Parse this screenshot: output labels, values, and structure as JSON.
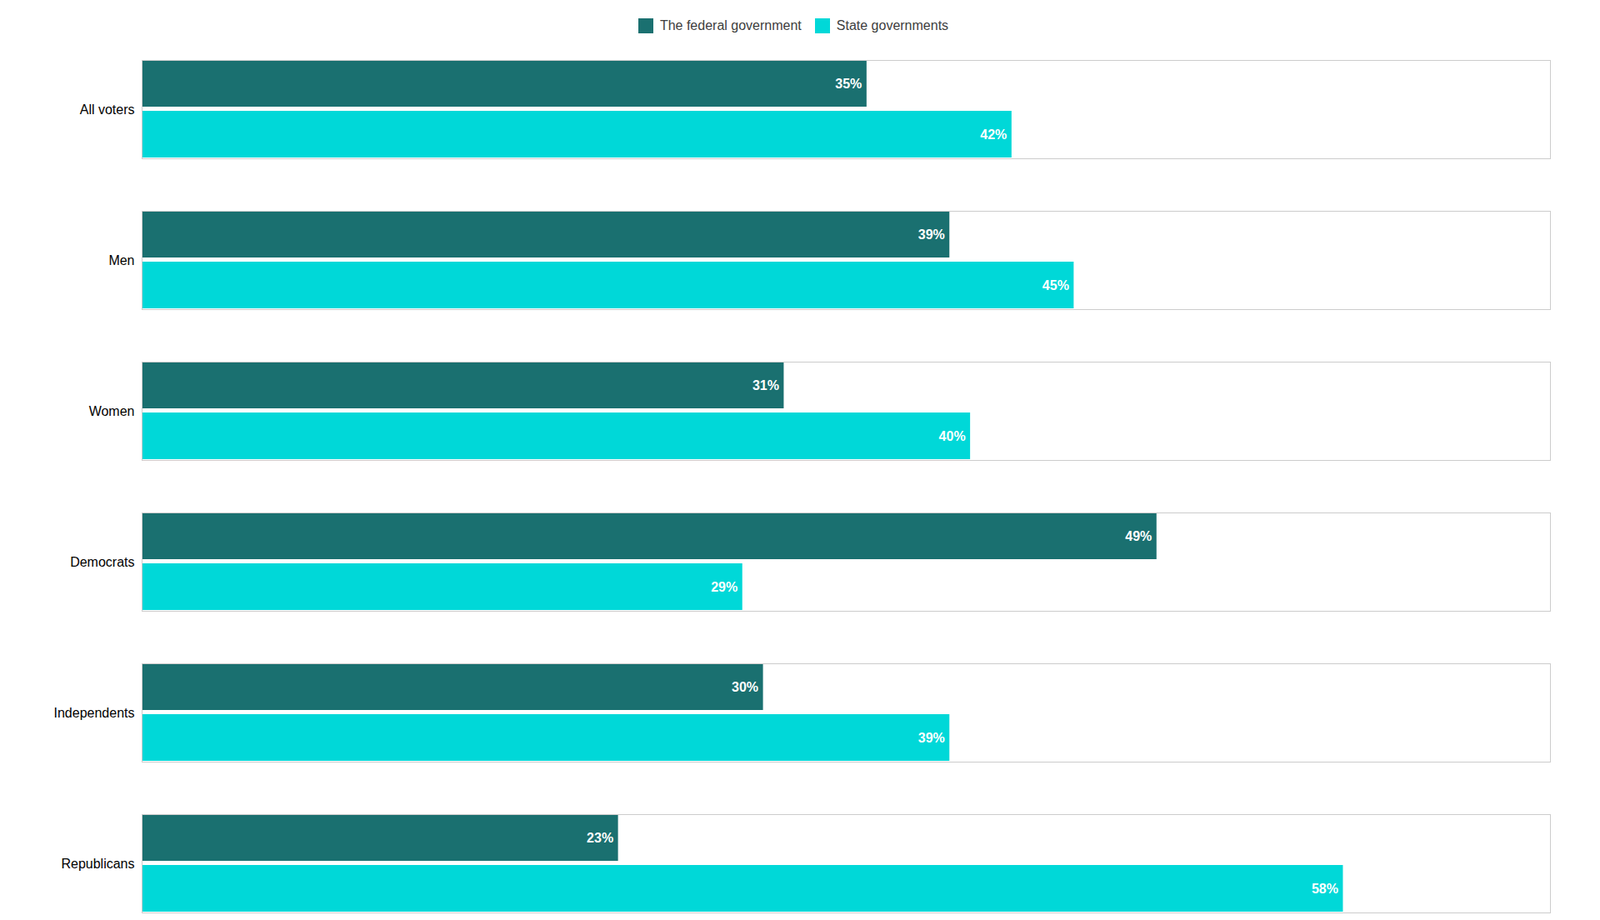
{
  "chart_data": {
    "type": "bar",
    "orientation": "horizontal",
    "categories": [
      "All voters",
      "Men",
      "Women",
      "Democrats",
      "Independents",
      "Republicans"
    ],
    "series": [
      {
        "name": "The federal government",
        "color": "#1a7070",
        "values": [
          35,
          39,
          31,
          49,
          30,
          23
        ],
        "value_labels": [
          "35%",
          "39%",
          "31%",
          "49%",
          "30%",
          "23%"
        ]
      },
      {
        "name": "State governments",
        "color": "#00d8d8",
        "values": [
          42,
          45,
          40,
          29,
          39,
          58
        ],
        "value_labels": [
          "42%",
          "45%",
          "40%",
          "29%",
          "39%",
          "58%"
        ]
      }
    ],
    "xlim": [
      0,
      68
    ],
    "data_labels": true,
    "tick_labels": "y",
    "grid": false,
    "legend": "top"
  }
}
